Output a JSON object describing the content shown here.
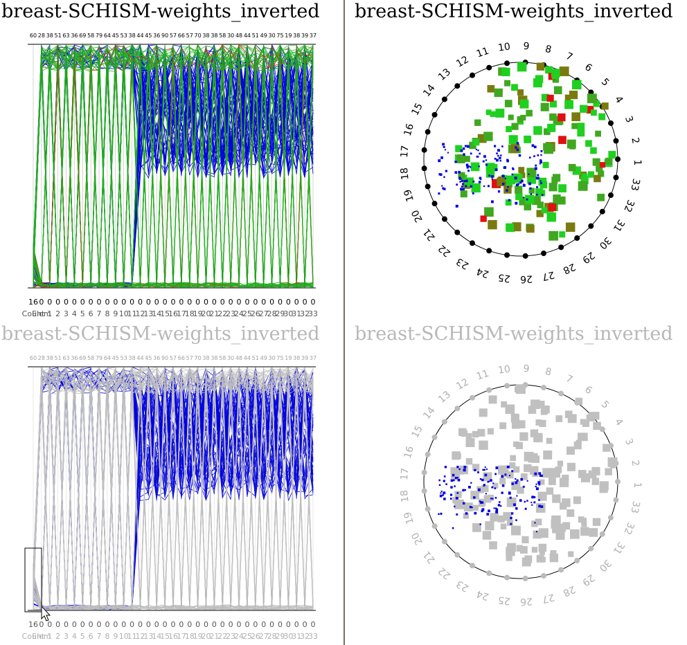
{
  "window": {
    "panels": [
      {
        "id": "tl",
        "title": "breast-SCHISM-weights_inverted",
        "kind": "parallel",
        "state": "active"
      },
      {
        "id": "tr",
        "title": "breast-SCHISM-weights_inverted",
        "kind": "radial",
        "state": "active"
      },
      {
        "id": "bl",
        "title": "breast-SCHISM-weights_inverted",
        "kind": "parallel",
        "state": "dimmed"
      },
      {
        "id": "br",
        "title": "breast-SCHISM-weights_inverted",
        "kind": "radial",
        "state": "dimmed"
      }
    ]
  },
  "chart_data": [
    {
      "type": "parallel-coordinates",
      "title": "breast-SCHISM-weights_inverted",
      "axes": [
        "Count",
        "Elem",
        "1",
        "2",
        "3",
        "4",
        "5",
        "6",
        "7",
        "8",
        "9",
        "10",
        "11",
        "12",
        "13",
        "14",
        "15",
        "16",
        "17",
        "18",
        "19",
        "20",
        "21",
        "22",
        "23",
        "24",
        "25",
        "26",
        "27",
        "28",
        "29",
        "30",
        "31",
        "32",
        "33"
      ],
      "axis_bottom_values": [
        "16",
        "0",
        "0",
        "0",
        "0",
        "0",
        "0",
        "0",
        "0",
        "0",
        "0",
        "0",
        "0",
        "0",
        "0",
        "0",
        "0",
        "0",
        "0",
        "0",
        "0",
        "0",
        "0",
        "0",
        "0",
        "0",
        "0",
        "0",
        "0",
        "0",
        "0",
        "0",
        "0",
        "0",
        "0"
      ],
      "axis_top_values": [
        "60",
        "28",
        "38",
        "51",
        "63",
        "36",
        "69",
        "58",
        "79",
        "64",
        "45",
        "53",
        "38",
        "44",
        "45",
        "36",
        "90",
        "57",
        "66",
        "57",
        "70",
        "38",
        "38",
        "58",
        "30",
        "48",
        "44",
        "51",
        "49",
        "30",
        "75",
        "19",
        "38",
        "39",
        "37"
      ],
      "series_colors": {
        "high": "#e01010",
        "mid": "#a05a00",
        "low": "#20b020",
        "selected": "#0000e0",
        "unselected": "#c0c0c0"
      },
      "grid": false
    },
    {
      "type": "radial-scatter",
      "title": "breast-SCHISM-weights_inverted",
      "categories": [
        "1",
        "2",
        "3",
        "4",
        "5",
        "6",
        "7",
        "8",
        "9",
        "10",
        "11",
        "12",
        "13",
        "14",
        "15",
        "16",
        "17",
        "18",
        "19",
        "20",
        "21",
        "22",
        "23",
        "24",
        "25",
        "26",
        "27",
        "28",
        "29",
        "30",
        "31",
        "32",
        "33"
      ]
    }
  ],
  "cursor": {
    "icon": "arrow-pointer-icon"
  }
}
